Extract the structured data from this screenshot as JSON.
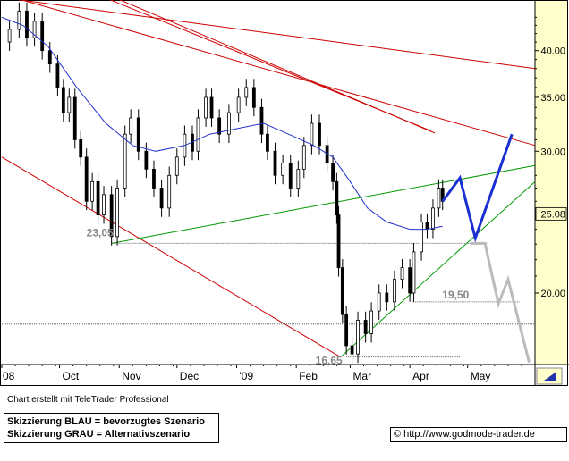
{
  "chart_data": {
    "type": "candlestick",
    "y_scale": "log",
    "ylim": [
      16.3,
      46
    ],
    "y_ticks": [
      {
        "value": 20,
        "label": "20.00"
      },
      {
        "value": 25,
        "label": "25.00"
      },
      {
        "value": 30,
        "label": "30.00"
      },
      {
        "value": 35,
        "label": "35.00"
      },
      {
        "value": 40,
        "label": "40.00"
      }
    ],
    "current_price_label": "25.08",
    "current_price": 25.08,
    "x_ticks": [
      "08",
      "Oct",
      "Nov",
      "Dec",
      "'09",
      "Feb",
      "Mar",
      "Apr",
      "May"
    ],
    "xlim": [
      "2008-09-01",
      "2009-06-05"
    ],
    "x_tick_dates": [
      "2008-09-01",
      "2008-10-01",
      "2008-11-01",
      "2008-12-01",
      "2009-01-01",
      "2009-02-01",
      "2009-03-01",
      "2009-04-01",
      "2009-05-01"
    ],
    "annotations": [
      {
        "text": "23,05",
        "date": "2008-10-28",
        "value": 23.05
      },
      {
        "text": "19,50",
        "date": "2009-04-02",
        "value": 19.5
      },
      {
        "text": "16,65",
        "date": "2009-02-24",
        "value": 16.65
      }
    ],
    "price_points": [
      [
        "2008-09-01",
        41.0
      ],
      [
        "2008-09-05",
        42.5
      ],
      [
        "2008-09-10",
        44.8
      ],
      [
        "2008-09-14",
        41.5
      ],
      [
        "2008-09-18",
        43.5
      ],
      [
        "2008-09-22",
        40.0
      ],
      [
        "2008-09-26",
        38.5
      ],
      [
        "2008-09-30",
        36.0
      ],
      [
        "2008-10-03",
        33.5
      ],
      [
        "2008-10-06",
        35.0
      ],
      [
        "2008-10-09",
        31.0
      ],
      [
        "2008-10-12",
        29.5
      ],
      [
        "2008-10-15",
        26.0
      ],
      [
        "2008-10-18",
        27.5
      ],
      [
        "2008-10-21",
        25.0
      ],
      [
        "2008-10-24",
        26.5
      ],
      [
        "2008-10-28",
        23.5
      ],
      [
        "2008-10-31",
        27.0
      ],
      [
        "2008-11-04",
        31.5
      ],
      [
        "2008-11-07",
        33.0
      ],
      [
        "2008-11-11",
        30.0
      ],
      [
        "2008-11-15",
        28.5
      ],
      [
        "2008-11-19",
        27.0
      ],
      [
        "2008-11-23",
        25.5
      ],
      [
        "2008-11-27",
        28.0
      ],
      [
        "2008-12-01",
        29.5
      ],
      [
        "2008-12-05",
        31.5
      ],
      [
        "2008-12-09",
        30.0
      ],
      [
        "2008-12-12",
        33.0
      ],
      [
        "2008-12-16",
        35.0
      ],
      [
        "2008-12-19",
        33.0
      ],
      [
        "2008-12-23",
        31.5
      ],
      [
        "2008-12-28",
        33.5
      ],
      [
        "2009-01-02",
        35.0
      ],
      [
        "2009-01-06",
        36.0
      ],
      [
        "2009-01-10",
        34.0
      ],
      [
        "2009-01-14",
        31.5
      ],
      [
        "2009-01-17",
        30.0
      ],
      [
        "2009-01-21",
        28.0
      ],
      [
        "2009-01-25",
        29.0
      ],
      [
        "2009-01-29",
        27.0
      ],
      [
        "2009-02-02",
        28.5
      ],
      [
        "2009-02-05",
        30.5
      ],
      [
        "2009-02-09",
        32.5
      ],
      [
        "2009-02-13",
        30.5
      ],
      [
        "2009-02-17",
        29.0
      ],
      [
        "2009-02-20",
        27.5
      ],
      [
        "2009-02-22",
        25.0
      ],
      [
        "2009-02-23",
        21.5
      ],
      [
        "2009-02-25",
        18.8
      ],
      [
        "2009-02-27",
        17.2
      ],
      [
        "2009-03-02",
        16.8
      ],
      [
        "2009-03-05",
        18.5
      ],
      [
        "2009-03-09",
        17.8
      ],
      [
        "2009-03-12",
        19.0
      ],
      [
        "2009-03-16",
        20.0
      ],
      [
        "2009-03-20",
        19.5
      ],
      [
        "2009-03-24",
        20.8
      ],
      [
        "2009-03-28",
        21.5
      ],
      [
        "2009-04-01",
        20.0
      ],
      [
        "2009-04-03",
        22.5
      ],
      [
        "2009-04-07",
        24.5
      ],
      [
        "2009-04-10",
        24.0
      ],
      [
        "2009-04-13",
        25.5
      ],
      [
        "2009-04-16",
        27.0
      ],
      [
        "2009-04-18",
        26.0
      ]
    ],
    "moving_average": [
      [
        "2008-09-01",
        44.0
      ],
      [
        "2008-09-12",
        43.0
      ],
      [
        "2008-09-25",
        40.5
      ],
      [
        "2008-10-10",
        36.0
      ],
      [
        "2008-10-25",
        32.5
      ],
      [
        "2008-11-08",
        30.5
      ],
      [
        "2008-11-20",
        30.0
      ],
      [
        "2008-12-05",
        30.5
      ],
      [
        "2008-12-18",
        31.5
      ],
      [
        "2009-01-01",
        32.0
      ],
      [
        "2009-01-15",
        32.5
      ],
      [
        "2009-01-28",
        31.5
      ],
      [
        "2009-02-10",
        30.5
      ],
      [
        "2009-02-20",
        29.5
      ],
      [
        "2009-03-01",
        27.5
      ],
      [
        "2009-03-10",
        25.5
      ],
      [
        "2009-03-20",
        24.5
      ],
      [
        "2009-04-01",
        24.0
      ],
      [
        "2009-04-10",
        24.0
      ],
      [
        "2009-04-18",
        24.2
      ]
    ],
    "trend_lines": [
      {
        "name": "red-downtrend-upper",
        "color": "#cc0000",
        "points": [
          [
            "2008-09-03",
            46.5
          ],
          [
            "2009-06-05",
            38.0
          ]
        ]
      },
      {
        "name": "red-downtrend-long",
        "color": "#cc0000",
        "points": [
          [
            "2008-09-01",
            47.0
          ],
          [
            "2009-06-05",
            30.5
          ]
        ]
      },
      {
        "name": "red-downtrend-double",
        "color": "#cc0000",
        "points": [
          [
            "2008-10-25",
            46.5
          ],
          [
            "2009-04-12",
            31.8
          ]
        ]
      },
      {
        "name": "red-downtrend-double-2",
        "color": "#cc0000",
        "points": [
          [
            "2008-10-30",
            46.5
          ],
          [
            "2009-04-14",
            31.6
          ]
        ]
      },
      {
        "name": "red-support-diagonal",
        "color": "#cc0000",
        "points": [
          [
            "2008-09-01",
            29.5
          ],
          [
            "2009-02-24",
            16.65
          ]
        ]
      },
      {
        "name": "green-resistance",
        "color": "#009900",
        "points": [
          [
            "2008-10-28",
            23.05
          ],
          [
            "2009-06-05",
            28.8
          ]
        ]
      },
      {
        "name": "green-support",
        "color": "#009900",
        "points": [
          [
            "2009-02-24",
            16.65
          ],
          [
            "2009-06-05",
            27.5
          ]
        ]
      },
      {
        "name": "gray-horizontal-23",
        "color": "#666666",
        "dashed": true,
        "points": [
          [
            "2008-10-28",
            23.05
          ],
          [
            "2009-05-12",
            23.05
          ]
        ]
      },
      {
        "name": "gray-horizontal-19",
        "color": "#666666",
        "dashed": true,
        "points": [
          [
            "2008-09-01",
            18.3
          ],
          [
            "2009-06-05",
            18.3
          ]
        ]
      },
      {
        "name": "gray-horizontal-1950",
        "color": "#666666",
        "dashed": true,
        "points": [
          [
            "2009-04-02",
            19.5
          ],
          [
            "2009-05-28",
            19.5
          ]
        ]
      },
      {
        "name": "gray-horizontal-1665",
        "color": "#666666",
        "dashed": true,
        "points": [
          [
            "2009-02-27",
            16.65
          ],
          [
            "2009-04-27",
            16.65
          ]
        ]
      }
    ],
    "scenarios": [
      {
        "name": "preferred",
        "color": "#1a2fd0",
        "points": [
          [
            "2009-04-18",
            26.0
          ],
          [
            "2009-04-27",
            27.8
          ],
          [
            "2009-05-05",
            23.4
          ],
          [
            "2009-05-24",
            31.5
          ]
        ]
      },
      {
        "name": "alternative",
        "color": "#bbbbbb",
        "points": [
          [
            "2009-05-03",
            23.05
          ],
          [
            "2009-05-10",
            23.05
          ],
          [
            "2009-05-17",
            19.4
          ],
          [
            "2009-05-22",
            20.8
          ],
          [
            "2009-06-02",
            16.4
          ]
        ]
      }
    ]
  },
  "footer": {
    "note": "Chart erstellt mit TeleTrader Professional",
    "legend_blue": "Skizzierung BLAU = bevorzugtes Szenario",
    "legend_gray": "Skizzierung GRAU = Alternativszenario",
    "copyright": "© http://www.godmode-trader.de"
  },
  "colors": {
    "axis_bg": "#ffffcc",
    "candle": "#000000",
    "ma": "#2233cc",
    "price_badge_bg": "#ffffcc"
  }
}
